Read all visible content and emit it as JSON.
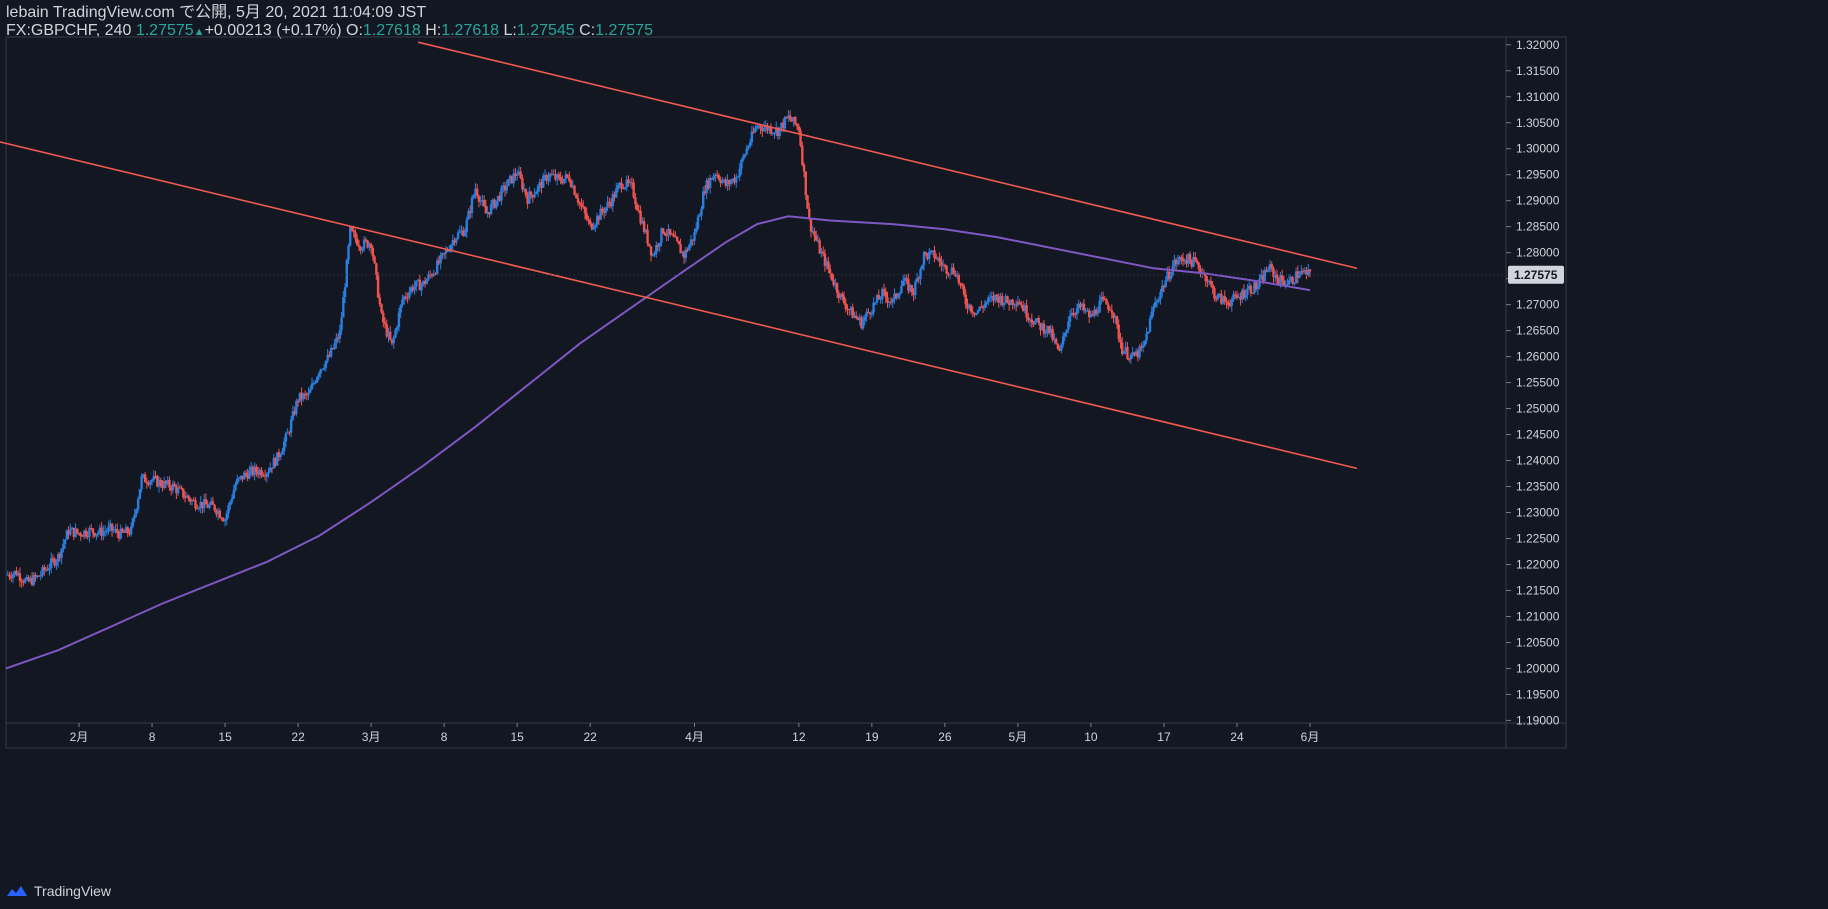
{
  "header": {
    "line1": "lebain TradingView.com で公開, 5月 20, 2021 11:04:09 JST",
    "symbol": "FX:GBPCHF, 240",
    "last": "1.27575",
    "change": "+0.00213 (+0.17%)",
    "o_label": "O:",
    "o_value": "1.27618",
    "h_label": "H:",
    "h_value": "1.27618",
    "l_label": "L:",
    "l_value": "1.27545",
    "c_label": "C:",
    "c_value": "1.27575"
  },
  "brand": {
    "name": "TradingView",
    "icon": "tradingview-logo-icon"
  },
  "colors": {
    "background": "#131722",
    "up": "#2a7ede",
    "down": "#ef5350",
    "ma": "#7e57c2",
    "channel": "#f05a50",
    "price_tag_bg": "#d1d4dc",
    "price_tag_text": "#131722"
  },
  "chart_data": {
    "type": "candlestick",
    "symbol": "FX:GBPCHF",
    "timeframe": "240",
    "ylim": [
      1.1895,
      1.3215
    ],
    "y_ticks": [
      "1.32000",
      "1.31500",
      "1.31000",
      "1.30500",
      "1.30000",
      "1.29500",
      "1.29000",
      "1.28500",
      "1.28000",
      "1.27500",
      "1.27000",
      "1.26500",
      "1.26000",
      "1.25500",
      "1.25000",
      "1.24500",
      "1.24000",
      "1.23500",
      "1.23000",
      "1.22500",
      "1.22000",
      "1.21500",
      "1.21000",
      "1.20500",
      "1.20000",
      "1.19500",
      "1.19000"
    ],
    "x_range_days": [
      0,
      150
    ],
    "x_ticks": [
      {
        "day": 7,
        "label": "2月"
      },
      {
        "day": 14,
        "label": "8"
      },
      {
        "day": 21,
        "label": "15"
      },
      {
        "day": 28,
        "label": "22"
      },
      {
        "day": 35,
        "label": "3月"
      },
      {
        "day": 42,
        "label": "8"
      },
      {
        "day": 49,
        "label": "15"
      },
      {
        "day": 56,
        "label": "22"
      },
      {
        "day": 66,
        "label": "4月"
      },
      {
        "day": 76,
        "label": "12"
      },
      {
        "day": 83,
        "label": "19"
      },
      {
        "day": 90,
        "label": "26"
      },
      {
        "day": 97,
        "label": "5月"
      },
      {
        "day": 104,
        "label": "10"
      },
      {
        "day": 111,
        "label": "17"
      },
      {
        "day": 118,
        "label": "24"
      },
      {
        "day": 125,
        "label": "6月"
      }
    ],
    "last_price": "1.27575",
    "price_path": [
      [
        0,
        1.218
      ],
      [
        1,
        1.2185
      ],
      [
        2,
        1.2165
      ],
      [
        3,
        1.2175
      ],
      [
        4,
        1.2195
      ],
      [
        5,
        1.2215
      ],
      [
        6,
        1.2265
      ],
      [
        7,
        1.226
      ],
      [
        8,
        1.2265
      ],
      [
        9,
        1.2262
      ],
      [
        10,
        1.2268
      ],
      [
        11,
        1.2258
      ],
      [
        12,
        1.2265
      ],
      [
        13,
        1.2365
      ],
      [
        14,
        1.2363
      ],
      [
        15,
        1.2355
      ],
      [
        16,
        1.235
      ],
      [
        17,
        1.2335
      ],
      [
        18,
        1.232
      ],
      [
        19,
        1.2315
      ],
      [
        20,
        1.231
      ],
      [
        21,
        1.2288
      ],
      [
        22,
        1.2355
      ],
      [
        23,
        1.2375
      ],
      [
        24,
        1.238
      ],
      [
        25,
        1.238
      ],
      [
        26,
        1.2405
      ],
      [
        27,
        1.245
      ],
      [
        28,
        1.252
      ],
      [
        29,
        1.2525
      ],
      [
        30,
        1.2575
      ],
      [
        31,
        1.26
      ],
      [
        32,
        1.2645
      ],
      [
        33,
        1.284
      ],
      [
        34,
        1.2815
      ],
      [
        35,
        1.282
      ],
      [
        36,
        1.2675
      ],
      [
        37,
        1.262
      ],
      [
        38,
        1.271
      ],
      [
        39,
        1.2735
      ],
      [
        40,
        1.274
      ],
      [
        41,
        1.2765
      ],
      [
        42,
        1.2795
      ],
      [
        43,
        1.283
      ],
      [
        44,
        1.2845
      ],
      [
        45,
        1.2925
      ],
      [
        46,
        1.2875
      ],
      [
        47,
        1.29
      ],
      [
        48,
        1.293
      ],
      [
        49,
        1.2955
      ],
      [
        50,
        1.2905
      ],
      [
        51,
        1.2925
      ],
      [
        52,
        1.295
      ],
      [
        53,
        1.294
      ],
      [
        54,
        1.2945
      ],
      [
        55,
        1.2895
      ],
      [
        56,
        1.285
      ],
      [
        57,
        1.2875
      ],
      [
        58,
        1.29
      ],
      [
        59,
        1.2935
      ],
      [
        60,
        1.2925
      ],
      [
        61,
        1.2855
      ],
      [
        62,
        1.2795
      ],
      [
        63,
        1.2845
      ],
      [
        64,
        1.2825
      ],
      [
        65,
        1.2795
      ],
      [
        66,
        1.2835
      ],
      [
        67,
        1.2925
      ],
      [
        68,
        1.2955
      ],
      [
        69,
        1.293
      ],
      [
        70,
        1.2945
      ],
      [
        71,
        1.3
      ],
      [
        72,
        1.3045
      ],
      [
        73,
        1.304
      ],
      [
        74,
        1.3035
      ],
      [
        75,
        1.306
      ],
      [
        76,
        1.304
      ],
      [
        77,
        1.286
      ],
      [
        78,
        1.2805
      ],
      [
        79,
        1.276
      ],
      [
        80,
        1.2715
      ],
      [
        81,
        1.2685
      ],
      [
        82,
        1.2665
      ],
      [
        83,
        1.2695
      ],
      [
        84,
        1.272
      ],
      [
        85,
        1.2705
      ],
      [
        86,
        1.2745
      ],
      [
        87,
        1.2725
      ],
      [
        88,
        1.2795
      ],
      [
        89,
        1.2795
      ],
      [
        90,
        1.277
      ],
      [
        91,
        1.2765
      ],
      [
        92,
        1.2705
      ],
      [
        93,
        1.2685
      ],
      [
        94,
        1.2705
      ],
      [
        95,
        1.2715
      ],
      [
        96,
        1.2705
      ],
      [
        97,
        1.271
      ],
      [
        98,
        1.268
      ],
      [
        99,
        1.266
      ],
      [
        100,
        1.265
      ],
      [
        101,
        1.2605
      ],
      [
        102,
        1.2685
      ],
      [
        103,
        1.2695
      ],
      [
        104,
        1.2675
      ],
      [
        105,
        1.2705
      ],
      [
        106,
        1.2695
      ],
      [
        107,
        1.2615
      ],
      [
        108,
        1.2598
      ],
      [
        109,
        1.2615
      ],
      [
        110,
        1.2695
      ],
      [
        111,
        1.274
      ],
      [
        112,
        1.278
      ],
      [
        113,
        1.279
      ],
      [
        114,
        1.278
      ],
      [
        115,
        1.2755
      ],
      [
        116,
        1.2715
      ],
      [
        117,
        1.2705
      ],
      [
        118,
        1.2712
      ],
      [
        119,
        1.273
      ],
      [
        120,
        1.2735
      ],
      [
        121,
        1.2772
      ],
      [
        122,
        1.2748
      ],
      [
        123,
        1.2742
      ],
      [
        124,
        1.2762
      ],
      [
        125,
        1.2757
      ]
    ],
    "moving_average": [
      [
        0,
        1.2
      ],
      [
        5,
        1.2035
      ],
      [
        10,
        1.208
      ],
      [
        15,
        1.2125
      ],
      [
        20,
        1.2165
      ],
      [
        25,
        1.2205
      ],
      [
        30,
        1.2255
      ],
      [
        35,
        1.232
      ],
      [
        40,
        1.239
      ],
      [
        45,
        1.2465
      ],
      [
        50,
        1.2545
      ],
      [
        55,
        1.2625
      ],
      [
        60,
        1.2695
      ],
      [
        65,
        1.2765
      ],
      [
        69,
        1.282
      ],
      [
        72,
        1.2855
      ],
      [
        75,
        1.287
      ],
      [
        79,
        1.2862
      ],
      [
        85,
        1.2855
      ],
      [
        90,
        1.2845
      ],
      [
        95,
        1.283
      ],
      [
        100,
        1.281
      ],
      [
        105,
        1.279
      ],
      [
        110,
        1.277
      ],
      [
        115,
        1.276
      ],
      [
        120,
        1.2745
      ],
      [
        125,
        1.2728
      ]
    ],
    "channel_upper": [
      [
        39.5,
        1.3205
      ],
      [
        129.5,
        1.277
      ]
    ],
    "channel_lower": [
      [
        -2,
        1.302
      ],
      [
        129.5,
        1.2385
      ]
    ]
  }
}
